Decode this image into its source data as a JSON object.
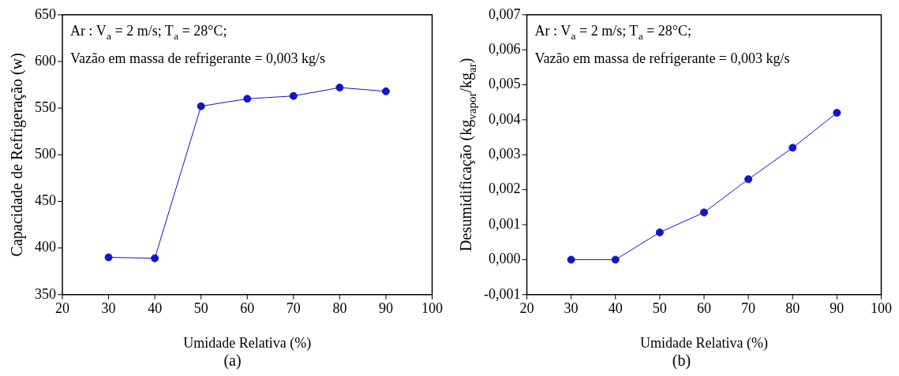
{
  "chart_data": [
    {
      "type": "line",
      "title": "(a)",
      "xlabel": "Umidade Relativa (%)",
      "ylabel": "Capacidade de Refrigeração (w)",
      "x": [
        30,
        40,
        50,
        60,
        70,
        80,
        90
      ],
      "series": [
        {
          "color": "#1414c8",
          "values": [
            390,
            389,
            552,
            560,
            563,
            572,
            568
          ]
        }
      ],
      "xlim": [
        20,
        100
      ],
      "xticks": [
        20,
        30,
        40,
        50,
        60,
        70,
        80,
        90,
        100
      ],
      "ylim": [
        350,
        650
      ],
      "yticks": [
        350,
        400,
        450,
        500,
        550,
        600,
        650
      ],
      "annotations": [
        "Ar : V$_{a}$ = 2 m/s; T$_{a}$ = 28°C;",
        "Vazão em massa de refrigerante = 0,003 kg/s"
      ],
      "grid": false,
      "legend": false,
      "marker": "circle",
      "line_style": "solid"
    },
    {
      "type": "line",
      "title": "(b)",
      "xlabel": "Umidade Relativa (%)",
      "ylabel": "Desumidificação (kg$_{vapor}$/kg$_{ar}$)",
      "x": [
        30,
        40,
        50,
        60,
        70,
        80,
        90
      ],
      "series": [
        {
          "color": "#1414c8",
          "values": [
            0,
            0,
            0.00078,
            0.00135,
            0.0023,
            0.0032,
            0.0042
          ]
        }
      ],
      "xlim": [
        20,
        100
      ],
      "xticks": [
        20,
        30,
        40,
        50,
        60,
        70,
        80,
        90,
        100
      ],
      "ylim": [
        -0.001,
        0.007
      ],
      "yticks": [
        {
          "value": -0.001,
          "label": "-0,001"
        },
        {
          "value": 0,
          "label": "0,000"
        },
        {
          "value": 0.001,
          "label": "0,001"
        },
        {
          "value": 0.002,
          "label": "0,002"
        },
        {
          "value": 0.003,
          "label": "0,003"
        },
        {
          "value": 0.004,
          "label": "0,004"
        },
        {
          "value": 0.005,
          "label": "0,005"
        },
        {
          "value": 0.006,
          "label": "0,006"
        },
        {
          "value": 0.007,
          "label": "0,007"
        }
      ],
      "annotations": [
        "Ar : V$_{a}$ = 2 m/s; T$_{a}$ = 28°C;",
        "Vazão em massa de refrigerante = 0,003 kg/s"
      ],
      "grid": false,
      "legend": false,
      "marker": "circle",
      "line_style": "solid"
    }
  ]
}
